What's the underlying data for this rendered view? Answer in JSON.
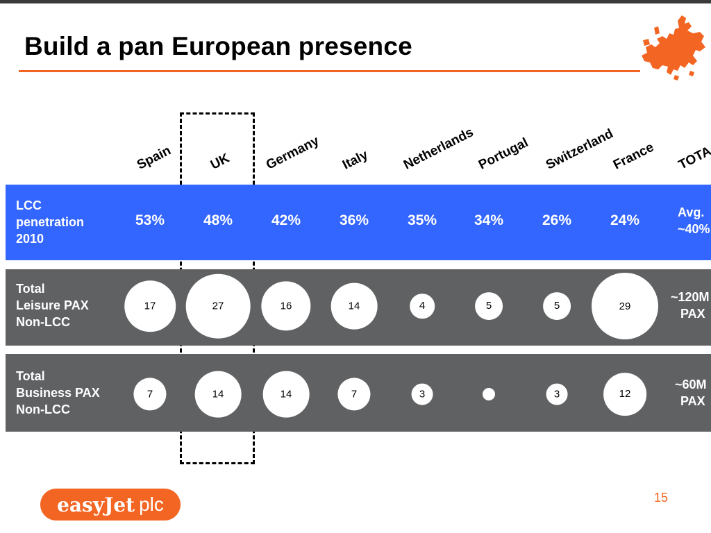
{
  "slide": {
    "title": "Build a pan European presence",
    "page_number": "15",
    "logo": {
      "brand": "easyJet",
      "suffix": "plc"
    },
    "colors": {
      "accent": "#f26522",
      "blue_band": "#3366ff",
      "grey_band": "#5f6163"
    },
    "map_icon": "europe-map-icon"
  },
  "countries": [
    "Spain",
    "UK",
    "Germany",
    "Italy",
    "Netherlands",
    "Portugal",
    "Switzerland",
    "France",
    "TOTA"
  ],
  "rows": {
    "penetration": {
      "label": [
        "LCC",
        "penetration",
        "2010"
      ],
      "values": [
        "53%",
        "48%",
        "42%",
        "36%",
        "35%",
        "34%",
        "26%",
        "24%"
      ],
      "total": [
        "Avg.",
        "~40%"
      ]
    },
    "leisure": {
      "label": [
        "Total",
        "Leisure PAX",
        "Non-LCC"
      ],
      "values": [
        17,
        27,
        16,
        14,
        4,
        5,
        5,
        29
      ],
      "total": [
        "~120M",
        "PAX"
      ]
    },
    "business": {
      "label": [
        "Total",
        "Business PAX",
        "Non-LCC"
      ],
      "values": [
        7,
        14,
        14,
        7,
        3,
        1,
        3,
        12
      ],
      "total": [
        "~60M",
        "PAX"
      ]
    }
  },
  "highlight": "UK"
}
